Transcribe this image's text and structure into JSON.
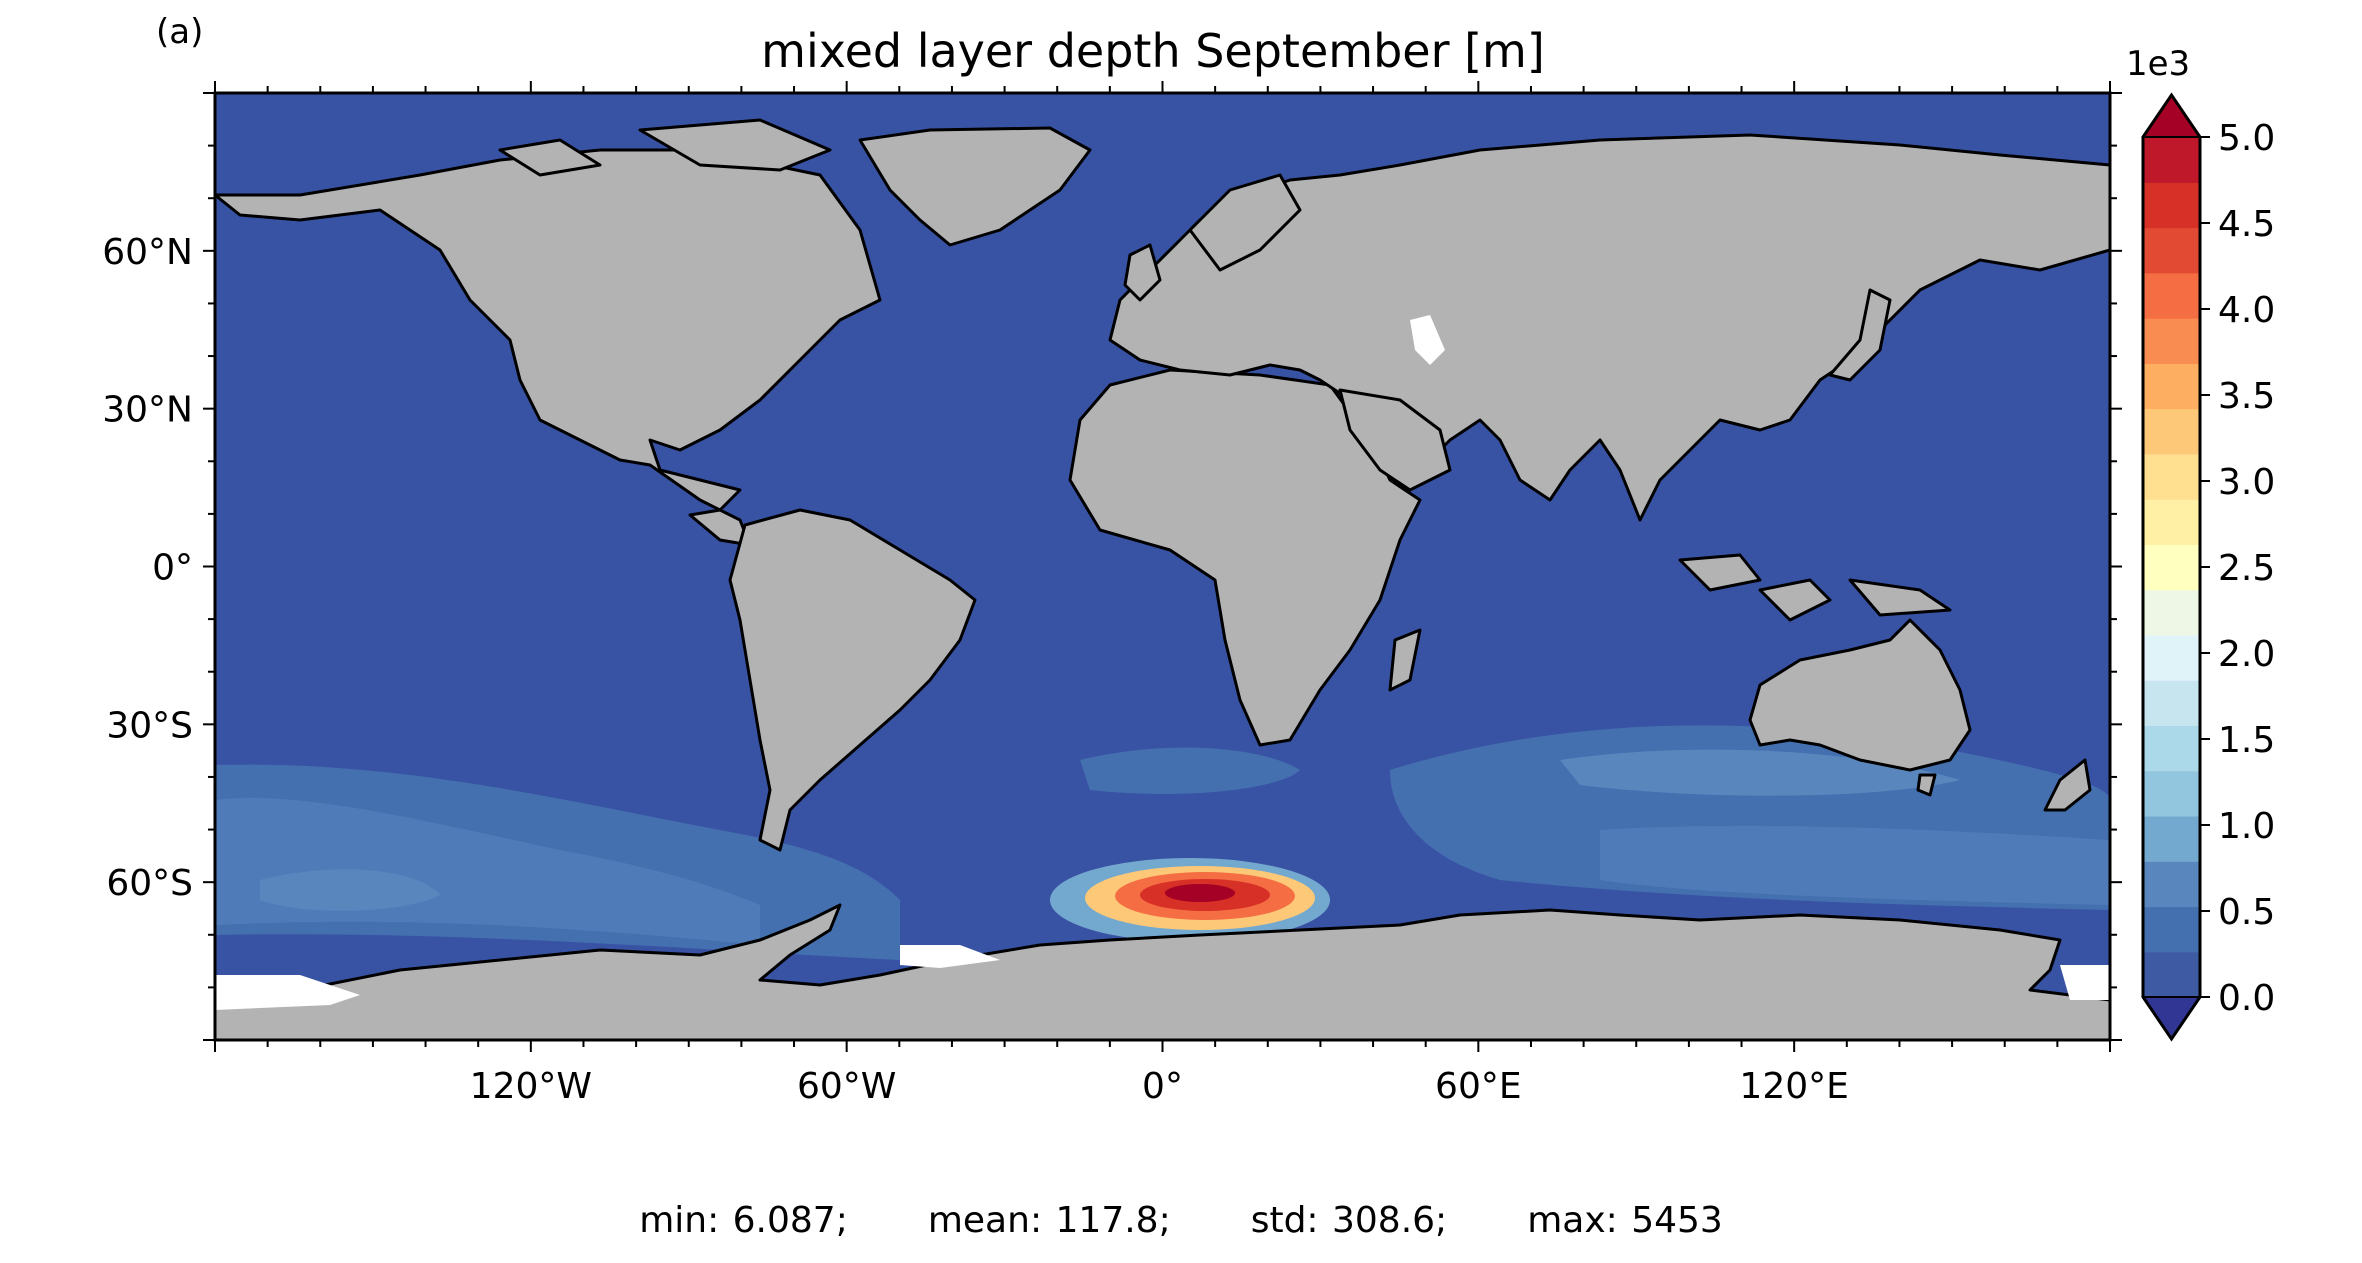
{
  "panel_label": "(a)",
  "title": "mixed layer depth September [m]",
  "colorbar": {
    "exponent_label": "1e3",
    "tick_labels": [
      "5.0",
      "4.5",
      "4.0",
      "3.5",
      "3.0",
      "2.5",
      "2.0",
      "1.5",
      "1.0",
      "0.5",
      "0.0"
    ],
    "tick_values": [
      5.0,
      4.5,
      4.0,
      3.5,
      3.0,
      2.5,
      2.0,
      1.5,
      1.0,
      0.5,
      0.0
    ],
    "min": 0.0,
    "max": 5.0,
    "extend": "both",
    "colors": [
      "#313695",
      "#3d5aa3",
      "#4470b0",
      "#5987bd",
      "#74a9cf",
      "#92c5de",
      "#abd9e9",
      "#c6e5ef",
      "#e0f3f8",
      "#eef7e6",
      "#ffffbf",
      "#fff0a6",
      "#fee090",
      "#fdc878",
      "#fdae61",
      "#f88c51",
      "#f46d43",
      "#e34a33",
      "#d73027",
      "#c0182b",
      "#a50026"
    ]
  },
  "axes": {
    "lat_ticks": [
      {
        "value": 60,
        "label": "60°N"
      },
      {
        "value": 30,
        "label": "30°N"
      },
      {
        "value": 0,
        "label": "0°"
      },
      {
        "value": -30,
        "label": "30°S"
      },
      {
        "value": -60,
        "label": "60°S"
      }
    ],
    "lon_ticks": [
      {
        "value": -120,
        "label": "120°W"
      },
      {
        "value": -60,
        "label": "60°W"
      },
      {
        "value": 0,
        "label": "0°"
      },
      {
        "value": 60,
        "label": "60°E"
      },
      {
        "value": 120,
        "label": "120°E"
      }
    ],
    "lon_range": [
      -180,
      180
    ],
    "lat_range": [
      -90,
      90
    ]
  },
  "stats": {
    "min": "min: 6.087;",
    "mean": "mean: 117.8;",
    "std": "std: 308.6;",
    "max": "max: 5453"
  },
  "colors": {
    "ocean": "#3953a4",
    "land": "#b3b3b3",
    "coast": "#000000",
    "mid_mld": "#4470b0",
    "deep_mld": "#5987bd",
    "hotspot": "#d73027"
  }
}
